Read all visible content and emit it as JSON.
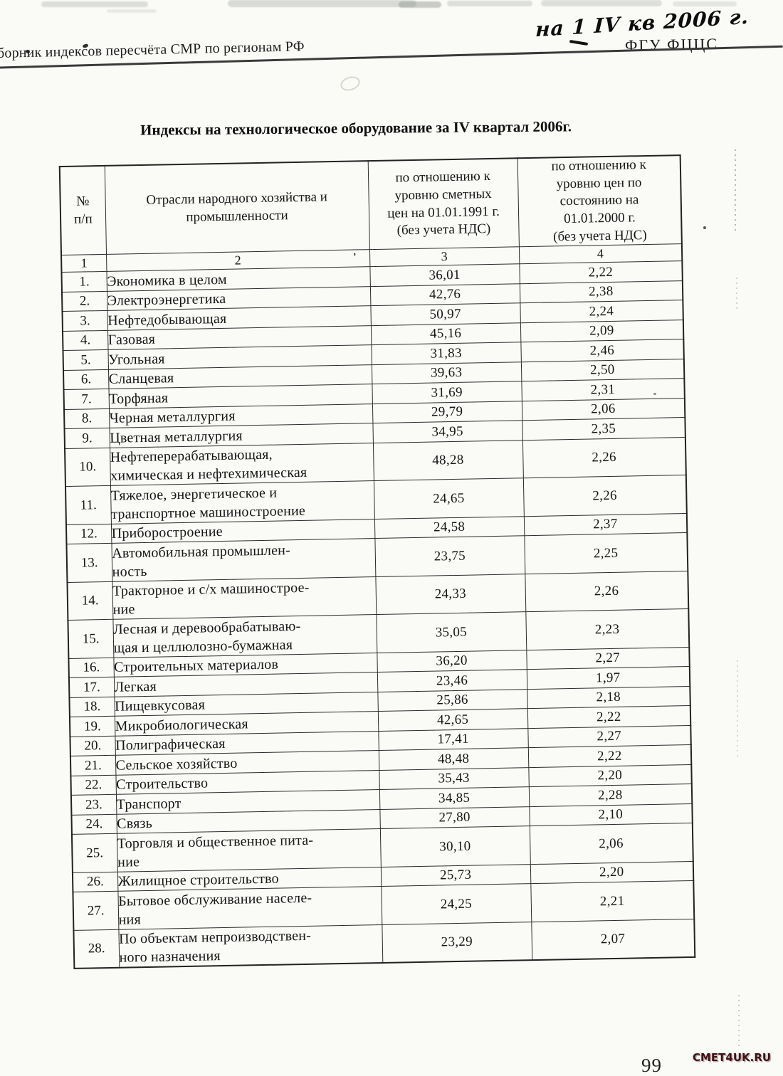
{
  "header": {
    "handwriting": "на 1 IV кв 2006 г.",
    "org": "ФГУ ФЦЦС",
    "series_title": "борник индексов пересчёта СМР  по регионам РФ"
  },
  "title": "Индексы на технологическое оборудование за IV квартал 2006г.",
  "table": {
    "col_headers": {
      "num": "№\nп/п",
      "industry": "Отрасли народного хозяйства и\nпромышленности",
      "idx1991": "по отношению к\nуровню сметных\nцен на 01.01.1991 г.\n(без учета НДС)",
      "idx2000": "по отношению к\nуровню цен по\nсостоянию на\n01.01.2000  г.\n(без учета НДС)"
    },
    "col_numbers": [
      "1",
      "2",
      "3",
      "4"
    ],
    "rows": [
      {
        "num": "1.",
        "name": "Экономика в целом",
        "v1991": "36,01",
        "v2000": "2,22"
      },
      {
        "num": "2.",
        "name": "Электроэнергетика",
        "v1991": "42,76",
        "v2000": "2,38"
      },
      {
        "num": "3.",
        "name": "Нефтедобывающая",
        "v1991": "50,97",
        "v2000": "2,24"
      },
      {
        "num": "4.",
        "name": "Газовая",
        "v1991": "45,16",
        "v2000": "2,09"
      },
      {
        "num": "5.",
        "name": "Угольная",
        "v1991": "31,83",
        "v2000": "2,46"
      },
      {
        "num": "6.",
        "name": "Сланцевая",
        "v1991": "39,63",
        "v2000": "2,50"
      },
      {
        "num": "7.",
        "name": "Торфяная",
        "v1991": "31,69",
        "v2000": "2,31"
      },
      {
        "num": "8.",
        "name": "Черная металлургия",
        "v1991": "29,79",
        "v2000": "2,06"
      },
      {
        "num": "9.",
        "name": "Цветная металлургия",
        "v1991": "34,95",
        "v2000": "2,35"
      },
      {
        "num": "10.",
        "name": "Нефтеперерабатывающая,\nхимическая и нефтехимическая",
        "v1991": "48,28",
        "v2000": "2,26"
      },
      {
        "num": "11.",
        "name": "Тяжелое, энергетическое и\nтранспортное машиностроение",
        "v1991": "24,65",
        "v2000": "2,26"
      },
      {
        "num": "12.",
        "name": "Приборостроение",
        "v1991": "24,58",
        "v2000": "2,37"
      },
      {
        "num": "13.",
        "name": "Автомобильная промышлен-\nность",
        "v1991": "23,75",
        "v2000": "2,25"
      },
      {
        "num": "14.",
        "name": "Тракторное и с/х машинострое-\nние",
        "v1991": "24,33",
        "v2000": "2,26"
      },
      {
        "num": "15.",
        "name": "Лесная и деревообрабатываю-\nщая и целлюлозно-бумажная",
        "v1991": "35,05",
        "v2000": "2,23"
      },
      {
        "num": "16.",
        "name": "Строительных материалов",
        "v1991": "36,20",
        "v2000": "2,27"
      },
      {
        "num": "17.",
        "name": "Легкая",
        "v1991": "23,46",
        "v2000": "1,97"
      },
      {
        "num": "18.",
        "name": "Пищевкусовая",
        "v1991": "25,86",
        "v2000": "2,18"
      },
      {
        "num": "19.",
        "name": "Микробиологическая",
        "v1991": "42,65",
        "v2000": "2,22"
      },
      {
        "num": "20.",
        "name": "Полиграфическая",
        "v1991": "17,41",
        "v2000": "2,27"
      },
      {
        "num": "21.",
        "name": "Сельское хозяйство",
        "v1991": "48,48",
        "v2000": "2,22"
      },
      {
        "num": "22.",
        "name": "Строительство",
        "v1991": "35,43",
        "v2000": "2,20"
      },
      {
        "num": "23.",
        "name": "Транспорт",
        "v1991": "34,85",
        "v2000": "2,28"
      },
      {
        "num": "24.",
        "name": "Связь",
        "v1991": "27,80",
        "v2000": "2,10"
      },
      {
        "num": "25.",
        "name": "Торговля и общественное пита-\nние",
        "v1991": "30,10",
        "v2000": "2,06"
      },
      {
        "num": "26.",
        "name": "Жилищное строительство",
        "v1991": "25,73",
        "v2000": "2,20"
      },
      {
        "num": "27.",
        "name": "Бытовое обслуживание населе-\nния",
        "v1991": "24,25",
        "v2000": "2,21"
      },
      {
        "num": "28.",
        "name": "По объектам непроизводствен-\nного назначения",
        "v1991": "23,29",
        "v2000": "2,07"
      }
    ]
  },
  "footer": {
    "watermark": "CMET4UK.RU",
    "page_number": "99"
  },
  "colors": {
    "ink": "#1c1c1c",
    "watermark": "#451111",
    "paper": "#fafaf7"
  }
}
